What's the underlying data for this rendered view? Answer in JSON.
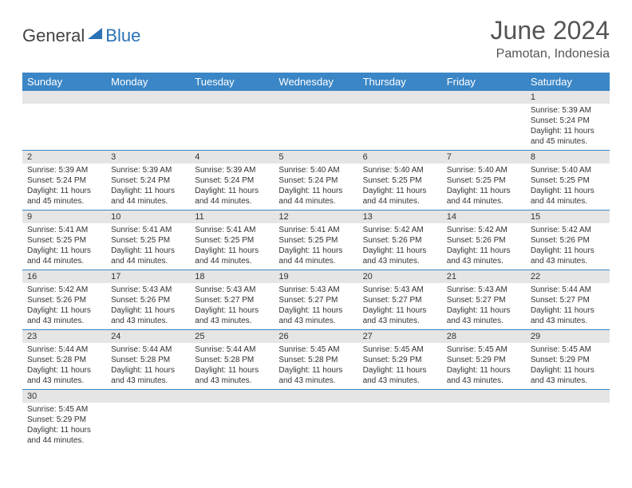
{
  "logo": {
    "text1": "General",
    "text2": "Blue"
  },
  "title": "June 2024",
  "location": "Pamotan, Indonesia",
  "colors": {
    "header_bg": "#3b86c6",
    "header_text": "#ffffff",
    "daynum_bg": "#e5e5e5",
    "row_border": "#3b86c6",
    "logo_blue": "#2a72b5",
    "text": "#333333"
  },
  "fonts": {
    "title_size": 32,
    "location_size": 16,
    "header_size": 13,
    "daynum_size": 11,
    "data_size": 10
  },
  "day_headers": [
    "Sunday",
    "Monday",
    "Tuesday",
    "Wednesday",
    "Thursday",
    "Friday",
    "Saturday"
  ],
  "weeks": [
    [
      null,
      null,
      null,
      null,
      null,
      null,
      {
        "n": "1",
        "sunrise": "Sunrise: 5:39 AM",
        "sunset": "Sunset: 5:24 PM",
        "daylight": "Daylight: 11 hours and 45 minutes."
      }
    ],
    [
      {
        "n": "2",
        "sunrise": "Sunrise: 5:39 AM",
        "sunset": "Sunset: 5:24 PM",
        "daylight": "Daylight: 11 hours and 45 minutes."
      },
      {
        "n": "3",
        "sunrise": "Sunrise: 5:39 AM",
        "sunset": "Sunset: 5:24 PM",
        "daylight": "Daylight: 11 hours and 44 minutes."
      },
      {
        "n": "4",
        "sunrise": "Sunrise: 5:39 AM",
        "sunset": "Sunset: 5:24 PM",
        "daylight": "Daylight: 11 hours and 44 minutes."
      },
      {
        "n": "5",
        "sunrise": "Sunrise: 5:40 AM",
        "sunset": "Sunset: 5:24 PM",
        "daylight": "Daylight: 11 hours and 44 minutes."
      },
      {
        "n": "6",
        "sunrise": "Sunrise: 5:40 AM",
        "sunset": "Sunset: 5:25 PM",
        "daylight": "Daylight: 11 hours and 44 minutes."
      },
      {
        "n": "7",
        "sunrise": "Sunrise: 5:40 AM",
        "sunset": "Sunset: 5:25 PM",
        "daylight": "Daylight: 11 hours and 44 minutes."
      },
      {
        "n": "8",
        "sunrise": "Sunrise: 5:40 AM",
        "sunset": "Sunset: 5:25 PM",
        "daylight": "Daylight: 11 hours and 44 minutes."
      }
    ],
    [
      {
        "n": "9",
        "sunrise": "Sunrise: 5:41 AM",
        "sunset": "Sunset: 5:25 PM",
        "daylight": "Daylight: 11 hours and 44 minutes."
      },
      {
        "n": "10",
        "sunrise": "Sunrise: 5:41 AM",
        "sunset": "Sunset: 5:25 PM",
        "daylight": "Daylight: 11 hours and 44 minutes."
      },
      {
        "n": "11",
        "sunrise": "Sunrise: 5:41 AM",
        "sunset": "Sunset: 5:25 PM",
        "daylight": "Daylight: 11 hours and 44 minutes."
      },
      {
        "n": "12",
        "sunrise": "Sunrise: 5:41 AM",
        "sunset": "Sunset: 5:25 PM",
        "daylight": "Daylight: 11 hours and 44 minutes."
      },
      {
        "n": "13",
        "sunrise": "Sunrise: 5:42 AM",
        "sunset": "Sunset: 5:26 PM",
        "daylight": "Daylight: 11 hours and 43 minutes."
      },
      {
        "n": "14",
        "sunrise": "Sunrise: 5:42 AM",
        "sunset": "Sunset: 5:26 PM",
        "daylight": "Daylight: 11 hours and 43 minutes."
      },
      {
        "n": "15",
        "sunrise": "Sunrise: 5:42 AM",
        "sunset": "Sunset: 5:26 PM",
        "daylight": "Daylight: 11 hours and 43 minutes."
      }
    ],
    [
      {
        "n": "16",
        "sunrise": "Sunrise: 5:42 AM",
        "sunset": "Sunset: 5:26 PM",
        "daylight": "Daylight: 11 hours and 43 minutes."
      },
      {
        "n": "17",
        "sunrise": "Sunrise: 5:43 AM",
        "sunset": "Sunset: 5:26 PM",
        "daylight": "Daylight: 11 hours and 43 minutes."
      },
      {
        "n": "18",
        "sunrise": "Sunrise: 5:43 AM",
        "sunset": "Sunset: 5:27 PM",
        "daylight": "Daylight: 11 hours and 43 minutes."
      },
      {
        "n": "19",
        "sunrise": "Sunrise: 5:43 AM",
        "sunset": "Sunset: 5:27 PM",
        "daylight": "Daylight: 11 hours and 43 minutes."
      },
      {
        "n": "20",
        "sunrise": "Sunrise: 5:43 AM",
        "sunset": "Sunset: 5:27 PM",
        "daylight": "Daylight: 11 hours and 43 minutes."
      },
      {
        "n": "21",
        "sunrise": "Sunrise: 5:43 AM",
        "sunset": "Sunset: 5:27 PM",
        "daylight": "Daylight: 11 hours and 43 minutes."
      },
      {
        "n": "22",
        "sunrise": "Sunrise: 5:44 AM",
        "sunset": "Sunset: 5:27 PM",
        "daylight": "Daylight: 11 hours and 43 minutes."
      }
    ],
    [
      {
        "n": "23",
        "sunrise": "Sunrise: 5:44 AM",
        "sunset": "Sunset: 5:28 PM",
        "daylight": "Daylight: 11 hours and 43 minutes."
      },
      {
        "n": "24",
        "sunrise": "Sunrise: 5:44 AM",
        "sunset": "Sunset: 5:28 PM",
        "daylight": "Daylight: 11 hours and 43 minutes."
      },
      {
        "n": "25",
        "sunrise": "Sunrise: 5:44 AM",
        "sunset": "Sunset: 5:28 PM",
        "daylight": "Daylight: 11 hours and 43 minutes."
      },
      {
        "n": "26",
        "sunrise": "Sunrise: 5:45 AM",
        "sunset": "Sunset: 5:28 PM",
        "daylight": "Daylight: 11 hours and 43 minutes."
      },
      {
        "n": "27",
        "sunrise": "Sunrise: 5:45 AM",
        "sunset": "Sunset: 5:29 PM",
        "daylight": "Daylight: 11 hours and 43 minutes."
      },
      {
        "n": "28",
        "sunrise": "Sunrise: 5:45 AM",
        "sunset": "Sunset: 5:29 PM",
        "daylight": "Daylight: 11 hours and 43 minutes."
      },
      {
        "n": "29",
        "sunrise": "Sunrise: 5:45 AM",
        "sunset": "Sunset: 5:29 PM",
        "daylight": "Daylight: 11 hours and 43 minutes."
      }
    ],
    [
      {
        "n": "30",
        "sunrise": "Sunrise: 5:45 AM",
        "sunset": "Sunset: 5:29 PM",
        "daylight": "Daylight: 11 hours and 44 minutes."
      },
      null,
      null,
      null,
      null,
      null,
      null
    ]
  ]
}
